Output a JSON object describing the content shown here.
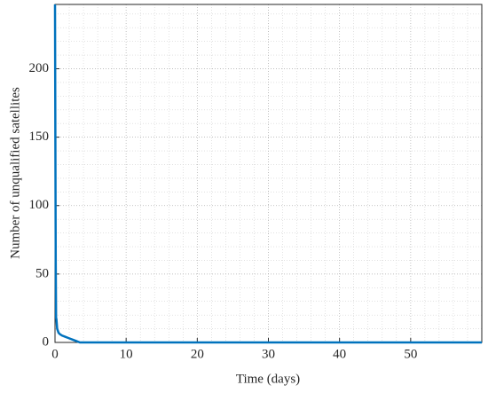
{
  "chart_data": {
    "type": "line",
    "xlabel": "Time (days)",
    "ylabel": "Number of unqualified satellites",
    "series": [
      {
        "color": "#0072bd",
        "x": [
          0,
          0.05,
          0.1,
          0.15,
          0.2,
          0.3,
          0.5,
          0.7,
          1,
          1.5,
          2,
          2.5,
          3,
          3.5,
          60
        ],
        "values": [
          247,
          150,
          60,
          18,
          17,
          10,
          7,
          6,
          5,
          4,
          3,
          2,
          1,
          0,
          0
        ]
      }
    ],
    "xlim": [
      0,
      60
    ],
    "xticks": [
      0,
      10,
      20,
      30,
      40,
      50
    ],
    "ylim": [
      0,
      247
    ],
    "yticks": [
      0,
      50,
      100,
      150,
      200
    ],
    "grid": true,
    "minor_grid": true
  }
}
